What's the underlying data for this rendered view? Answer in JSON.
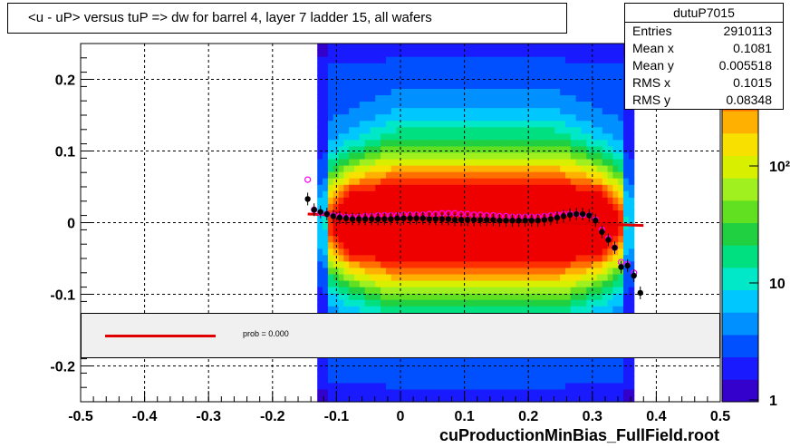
{
  "title": "<u - uP>       versus  tuP =>  dw for barrel 4, layer 7 ladder 15, all wafers",
  "stats": {
    "name": "dutuP7015",
    "rows": [
      {
        "label": "Entries",
        "value": "2910113"
      },
      {
        "label": "Mean x",
        "value": "0.1081"
      },
      {
        "label": "Mean y",
        "value": "0.005518"
      },
      {
        "label": "RMS x",
        "value": "0.1015"
      },
      {
        "label": "RMS y",
        "value": "0.08348"
      }
    ]
  },
  "legend": {
    "text": "prob = 0.000"
  },
  "footer": "cuProductionMinBias_FullField.root",
  "chart_data": {
    "type": "heatmap",
    "xlim": [
      -0.5,
      0.5
    ],
    "ylim": [
      -0.25,
      0.25
    ],
    "x_ticks": [
      "-0.5",
      "-0.4",
      "-0.3",
      "-0.2",
      "-0.1",
      "0",
      "0.1",
      "0.2",
      "0.3",
      "0.4",
      "0.5"
    ],
    "y_ticks": [
      "-0.2",
      "-0.1",
      "0",
      "0.1",
      "0.2"
    ],
    "color_scale": "log",
    "z_ticks": [
      "1",
      "10",
      "10²"
    ],
    "grid": true,
    "profile_black": {
      "x": [
        -0.145,
        -0.135,
        -0.125,
        -0.115,
        -0.105,
        -0.095,
        -0.085,
        -0.075,
        -0.065,
        -0.055,
        -0.045,
        -0.035,
        -0.025,
        -0.015,
        -0.005,
        0.005,
        0.015,
        0.025,
        0.035,
        0.045,
        0.055,
        0.065,
        0.075,
        0.085,
        0.095,
        0.105,
        0.115,
        0.125,
        0.135,
        0.145,
        0.155,
        0.165,
        0.175,
        0.185,
        0.195,
        0.205,
        0.215,
        0.225,
        0.235,
        0.245,
        0.255,
        0.265,
        0.275,
        0.285,
        0.295,
        0.305,
        0.315,
        0.325,
        0.335,
        0.345,
        0.355,
        0.365,
        0.375
      ],
      "y": [
        0.033,
        0.018,
        0.015,
        0.012,
        0.009,
        0.007,
        0.006,
        0.005,
        0.005,
        0.005,
        0.005,
        0.005,
        0.005,
        0.005,
        0.006,
        0.006,
        0.006,
        0.006,
        0.006,
        0.005,
        0.005,
        0.005,
        0.005,
        0.004,
        0.004,
        0.004,
        0.004,
        0.004,
        0.004,
        0.004,
        0.003,
        0.003,
        0.003,
        0.003,
        0.003,
        0.003,
        0.003,
        0.004,
        0.005,
        0.007,
        0.009,
        0.011,
        0.012,
        0.012,
        0.01,
        0.003,
        -0.013,
        -0.024,
        -0.035,
        -0.062,
        -0.06,
        -0.074,
        -0.098
      ]
    },
    "profile_magenta": {
      "x": [
        -0.145,
        -0.135,
        -0.125,
        -0.115,
        -0.105,
        -0.095,
        -0.085,
        -0.075,
        -0.065,
        -0.055,
        -0.045,
        -0.035,
        -0.025,
        -0.015,
        -0.005,
        0.005,
        0.015,
        0.025,
        0.035,
        0.045,
        0.055,
        0.065,
        0.075,
        0.085,
        0.095,
        0.105,
        0.115,
        0.125,
        0.135,
        0.145,
        0.155,
        0.165,
        0.175,
        0.185,
        0.195,
        0.205,
        0.215,
        0.225,
        0.235,
        0.245,
        0.255,
        0.265,
        0.275,
        0.285,
        0.295,
        0.305,
        0.315,
        0.325,
        0.335,
        0.345,
        0.355,
        0.365
      ],
      "y": [
        0.06,
        0.018,
        0.014,
        0.012,
        0.01,
        0.009,
        0.008,
        0.008,
        0.008,
        0.009,
        0.009,
        0.01,
        0.01,
        0.01,
        0.01,
        0.011,
        0.011,
        0.011,
        0.011,
        0.012,
        0.012,
        0.013,
        0.013,
        0.013,
        0.012,
        0.012,
        0.011,
        0.011,
        0.01,
        0.01,
        0.009,
        0.009,
        0.008,
        0.008,
        0.008,
        0.008,
        0.008,
        0.009,
        0.01,
        0.011,
        0.012,
        0.012,
        0.012,
        0.011,
        0.01,
        0.004,
        -0.01,
        -0.022,
        -0.035,
        -0.055,
        -0.058,
        -0.07
      ]
    },
    "fit_line": {
      "x": [
        -0.145,
        0.38
      ],
      "y": [
        0.012,
        -0.004
      ]
    }
  }
}
